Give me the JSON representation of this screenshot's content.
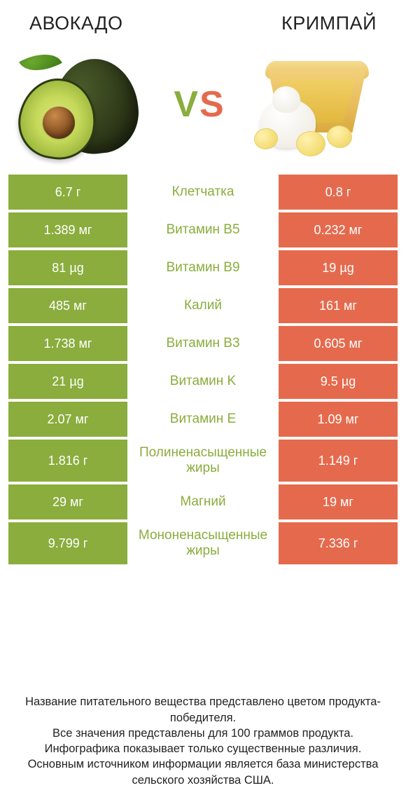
{
  "colors": {
    "left": "#8aad3d",
    "right": "#e56a4d",
    "mid_text": "#8aad3d",
    "vs_v": "#8aad3d",
    "vs_s": "#e56a4d"
  },
  "titles": {
    "left": "АВОКАДО",
    "right": "КРИМПАЙ"
  },
  "vs": {
    "v": "V",
    "s": "S"
  },
  "rows": [
    {
      "left": "6.7 г",
      "mid": "Клетчатка",
      "right": "0.8 г",
      "tall": false
    },
    {
      "left": "1.389 мг",
      "mid": "Витамин B5",
      "right": "0.232 мг",
      "tall": false
    },
    {
      "left": "81 µg",
      "mid": "Витамин B9",
      "right": "19 µg",
      "tall": false
    },
    {
      "left": "485 мг",
      "mid": "Калий",
      "right": "161 мг",
      "tall": false
    },
    {
      "left": "1.738 мг",
      "mid": "Витамин B3",
      "right": "0.605 мг",
      "tall": false
    },
    {
      "left": "21 µg",
      "mid": "Витамин K",
      "right": "9.5 µg",
      "tall": false
    },
    {
      "left": "2.07 мг",
      "mid": "Витамин E",
      "right": "1.09 мг",
      "tall": false
    },
    {
      "left": "1.816 г",
      "mid": "Полиненасыщенные жиры",
      "right": "1.149 г",
      "tall": true
    },
    {
      "left": "29 мг",
      "mid": "Магний",
      "right": "19 мг",
      "tall": false
    },
    {
      "left": "9.799 г",
      "mid": "Мононенасыщенные жиры",
      "right": "7.336 г",
      "tall": true
    }
  ],
  "footer": [
    "Название питательного вещества представлено цветом продукта-победителя.",
    "Все значения представлены для 100 граммов продукта.",
    "Инфографика показывает только существенные различия.",
    "Основным источником информации является база министерства сельского хозяйства США."
  ]
}
